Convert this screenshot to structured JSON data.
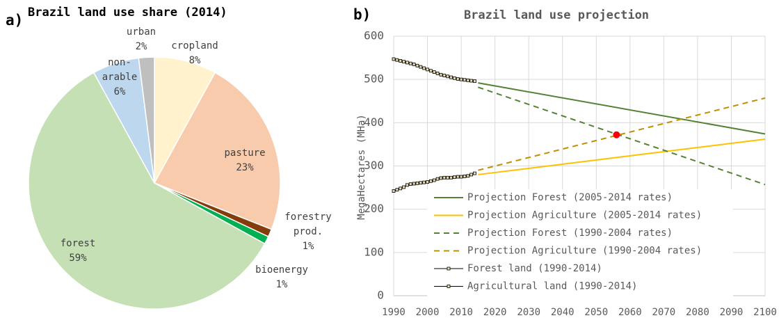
{
  "chart_data": [
    {
      "type": "pie",
      "panel_label": "a)",
      "title": "Brazil land use share (2014)",
      "categories": [
        "cropland",
        "pasture",
        "forestry\nprod.",
        "bioenergy",
        "forest",
        "non-\narable",
        "urban"
      ],
      "values": [
        8,
        23,
        1,
        1,
        59,
        6,
        2
      ],
      "value_labels": [
        "8%",
        "23%",
        "1%",
        "1%",
        "59%",
        "6%",
        "2%"
      ],
      "colors": [
        "#fff2cc",
        "#f8cbad",
        "#843c0c",
        "#00b050",
        "#c5e0b4",
        "#bdd7ee",
        "#bfbfbf"
      ]
    },
    {
      "type": "line",
      "panel_label": "b)",
      "title": "Brazil land use projection",
      "y_label": "MegaHectares (MHa)",
      "xlim": [
        1990,
        2100
      ],
      "xticks": [
        1990,
        2000,
        2010,
        2020,
        2030,
        2040,
        2050,
        2060,
        2070,
        2080,
        2090,
        2100
      ],
      "ylim": [
        0,
        600
      ],
      "yticks": [
        0,
        100,
        200,
        300,
        400,
        500,
        600
      ],
      "grid": true,
      "legend": "bottom",
      "series": [
        {
          "name": "Projection Forest (2005-2014 rates)",
          "color": "#548235",
          "dashed": false,
          "marker": false,
          "x": [
            2015,
            2100
          ],
          "values": [
            492,
            374
          ]
        },
        {
          "name": "Projection Agriculture (2005-2014 rates)",
          "color": "#ffc000",
          "dashed": false,
          "marker": false,
          "x": [
            2015,
            2100
          ],
          "values": [
            280,
            362
          ]
        },
        {
          "name": "Projection Forest (1990-2004 rates)",
          "color": "#548235",
          "dashed": true,
          "marker": false,
          "x": [
            2015,
            2100
          ],
          "values": [
            482,
            257
          ]
        },
        {
          "name": "Projection Agriculture (1990-2004 rates)",
          "color": "#bf9000",
          "dashed": true,
          "marker": false,
          "x": [
            2015,
            2100
          ],
          "values": [
            290,
            457
          ]
        },
        {
          "name": "Forest land (1990-2014)",
          "color": "#000000",
          "dashed": false,
          "marker": true,
          "marker_fill": "#e6dcb0",
          "x": [
            1990,
            1991,
            1992,
            1993,
            1994,
            1995,
            1996,
            1997,
            1998,
            1999,
            2000,
            2001,
            2002,
            2003,
            2004,
            2005,
            2006,
            2007,
            2008,
            2009,
            2010,
            2011,
            2012,
            2013,
            2014
          ],
          "values": [
            547,
            545,
            543,
            541,
            539,
            537,
            535,
            532,
            529,
            526,
            523,
            520,
            517,
            514,
            511,
            509,
            507,
            505,
            503,
            501,
            500,
            499,
            498,
            497,
            496
          ]
        },
        {
          "name": "Agricultural land (1990-2014)",
          "color": "#000000",
          "dashed": false,
          "marker": true,
          "marker_fill": "#e6dcb0",
          "x": [
            1990,
            1991,
            1992,
            1993,
            1994,
            1995,
            1996,
            1997,
            1998,
            1999,
            2000,
            2001,
            2002,
            2003,
            2004,
            2005,
            2006,
            2007,
            2008,
            2009,
            2010,
            2011,
            2012,
            2013,
            2014
          ],
          "values": [
            242,
            245,
            248,
            251,
            256,
            258,
            259,
            260,
            261,
            262,
            263,
            265,
            267,
            270,
            272,
            273,
            273,
            273,
            274,
            275,
            275,
            276,
            277,
            280,
            283
          ]
        }
      ],
      "highlight": {
        "x": 2056,
        "y": 372,
        "color": "#ff0000"
      }
    }
  ]
}
